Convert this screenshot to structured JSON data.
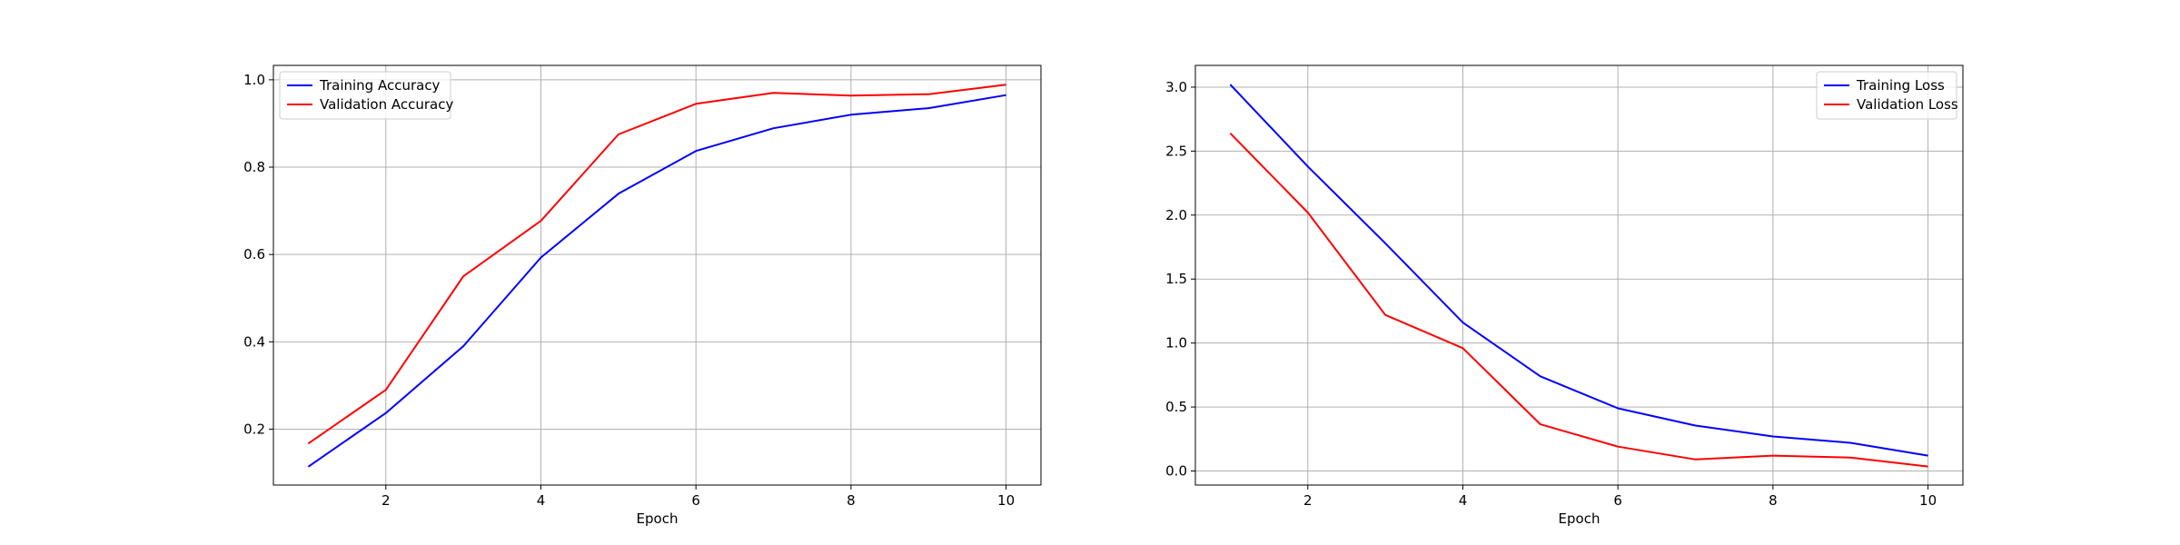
{
  "chart_data": [
    {
      "type": "line",
      "title": "",
      "xlabel": "Epoch",
      "ylabel": "",
      "x": [
        1,
        2,
        3,
        4,
        5,
        6,
        7,
        8,
        9,
        10
      ],
      "xlim": [
        0.55,
        10.45
      ],
      "ylim": [
        0.072,
        1.033
      ],
      "xticks": [
        2,
        4,
        6,
        8,
        10
      ],
      "yticks": [
        0.2,
        0.4,
        0.6,
        0.8,
        1.0
      ],
      "ytick_labels": [
        "0.2",
        "0.4",
        "0.6",
        "0.8",
        "1.0"
      ],
      "grid": true,
      "legend_position": "top-left",
      "series": [
        {
          "name": "Training Accuracy",
          "color": "#0000ff",
          "values": [
            0.114,
            0.237,
            0.39,
            0.593,
            0.739,
            0.837,
            0.889,
            0.92,
            0.935,
            0.965
          ]
        },
        {
          "name": "Validation Accuracy",
          "color": "#ff0000",
          "values": [
            0.167,
            0.29,
            0.55,
            0.677,
            0.875,
            0.945,
            0.97,
            0.964,
            0.967,
            0.989
          ]
        }
      ]
    },
    {
      "type": "line",
      "title": "",
      "xlabel": "Epoch",
      "ylabel": "",
      "x": [
        1,
        2,
        3,
        4,
        5,
        6,
        7,
        8,
        9,
        10
      ],
      "xlim": [
        0.55,
        10.45
      ],
      "ylim": [
        -0.11,
        3.17
      ],
      "xticks": [
        2,
        4,
        6,
        8,
        10
      ],
      "yticks": [
        0.0,
        0.5,
        1.0,
        1.5,
        2.0,
        2.5,
        3.0
      ],
      "ytick_labels": [
        "0.0",
        "0.5",
        "1.0",
        "1.5",
        "2.0",
        "2.5",
        "3.0"
      ],
      "grid": true,
      "legend_position": "top-right",
      "series": [
        {
          "name": "Training Loss",
          "color": "#0000ff",
          "values": [
            3.02,
            2.38,
            1.78,
            1.16,
            0.74,
            0.49,
            0.355,
            0.27,
            0.22,
            0.12
          ]
        },
        {
          "name": "Validation Loss",
          "color": "#ff0000",
          "values": [
            2.64,
            2.02,
            1.22,
            0.96,
            0.365,
            0.19,
            0.09,
            0.12,
            0.105,
            0.035
          ]
        }
      ]
    }
  ]
}
